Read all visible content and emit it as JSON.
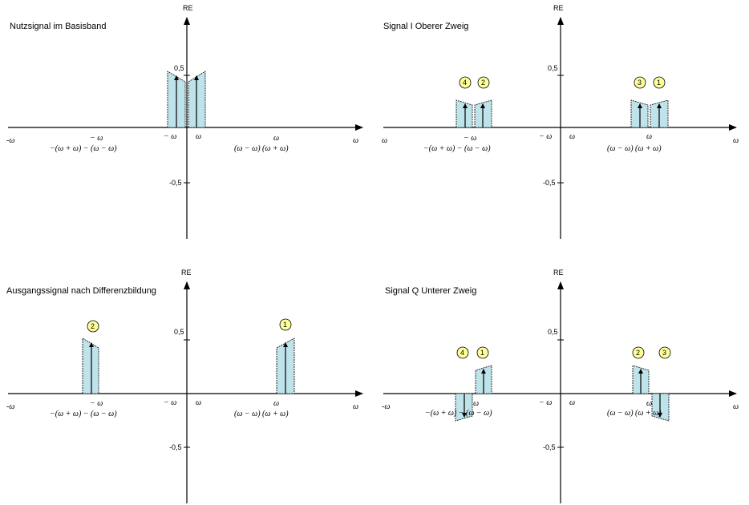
{
  "colors": {
    "fill": "#bfe3ea",
    "marker_fill": "#ffff99"
  },
  "panels": [
    {
      "title": "Nutzsignal im Basisband",
      "axis_y_label": "RE",
      "axis_x_label": "ω",
      "axis_x_left_label": "-ω",
      "tick_pos": "0,5",
      "tick_neg": "-0,5",
      "freq_labels": [
        "− ω",
        "ω",
        "−(ω + ω) − (ω − ω)",
        "− ω",
        "ω",
        "(ω − ω)  (ω + ω)"
      ],
      "markers": []
    },
    {
      "title": "Signal I Oberer Zweig",
      "axis_y_label": "RE",
      "axis_x_label": "ω",
      "axis_x_left_label": "ω",
      "tick_pos": "0,5",
      "tick_neg": "-0,5",
      "freq_labels": [
        "− ω",
        "−(ω + ω) − (ω − ω)",
        "− ω",
        "ω",
        "ω",
        "(ω − ω)  (ω + ω)"
      ],
      "markers": [
        "4",
        "2",
        "3",
        "1"
      ]
    },
    {
      "title": "Ausgangssignal nach Differenzbildung",
      "axis_y_label": "RE",
      "axis_x_label": "ω",
      "axis_x_left_label": "-ω",
      "tick_pos": "0,5",
      "tick_neg": "-0,5",
      "freq_labels": [
        "− ω",
        "−(ω + ω) − (ω − ω)",
        "− ω",
        "ω",
        "ω",
        "(ω − ω)  (ω + ω)"
      ],
      "markers": [
        "2",
        "1"
      ]
    },
    {
      "title": "Signal Q Unterer Zweig",
      "axis_y_label": "RE",
      "axis_x_label": "ω",
      "axis_x_left_label": "-ω",
      "tick_pos": "0,5",
      "tick_neg": "-0,5",
      "freq_labels": [
        "ω",
        "−(ω + ω) − (ω − ω)",
        "− ω",
        "ω",
        "ω",
        "(ω − ω)  (ω + ω)"
      ],
      "markers": [
        "4",
        "1",
        "2",
        "3"
      ]
    }
  ]
}
